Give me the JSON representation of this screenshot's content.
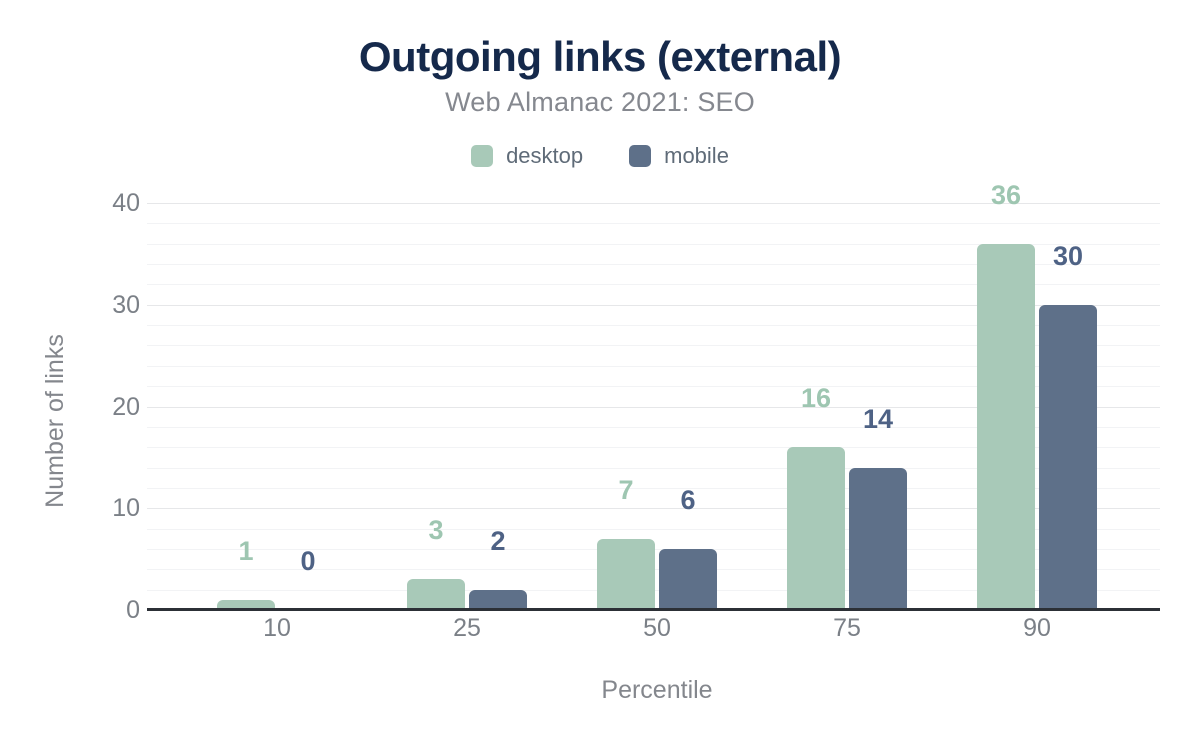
{
  "chart_data": {
    "type": "bar",
    "title": "Outgoing links (external)",
    "subtitle": "Web Almanac 2021: SEO",
    "xlabel": "Percentile",
    "ylabel": "Number of links",
    "categories": [
      "10",
      "25",
      "50",
      "75",
      "90"
    ],
    "series": [
      {
        "name": "desktop",
        "values": [
          1,
          3,
          7,
          16,
          36
        ],
        "bar_color": "#a8c9b8",
        "label_color": "#9ec6b1"
      },
      {
        "name": "mobile",
        "values": [
          0,
          2,
          6,
          14,
          30
        ],
        "bar_color": "#5e7089",
        "label_color": "#4e6285"
      }
    ],
    "ylim": [
      0,
      40
    ],
    "yticks": [
      0,
      10,
      20,
      30,
      40
    ],
    "minor_grid_step": 2,
    "grid": "on",
    "legend_position": "top",
    "colors": {
      "title": "#15294b",
      "subtitle": "#85888f",
      "legend_text": "#5f6b78",
      "tick_label": "#7b8087",
      "axis_title": "#84878d",
      "grid_major": "#e6e7e9",
      "grid_minor": "#f2f3f5",
      "axis_line": "#2c3036",
      "background": "#ffffff"
    }
  }
}
